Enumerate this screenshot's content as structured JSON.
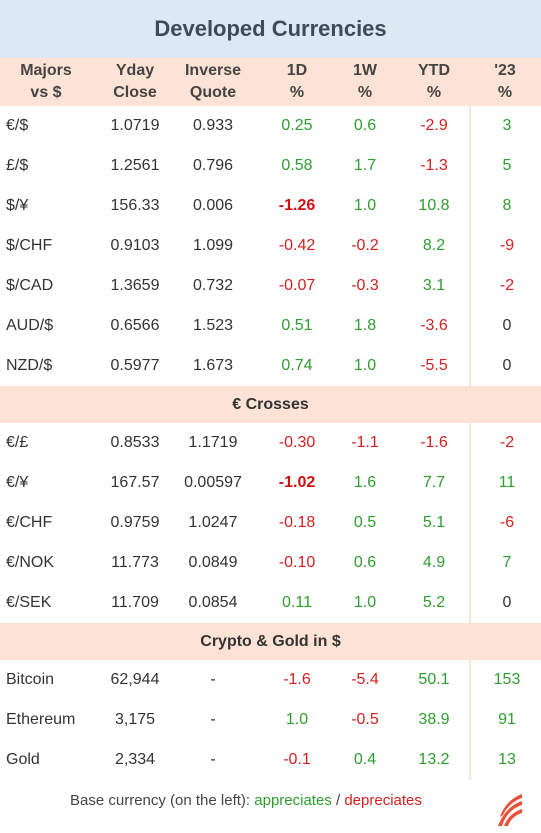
{
  "title": "Developed Currencies",
  "headers": [
    [
      "Majors",
      "vs $"
    ],
    [
      "Yday",
      "Close"
    ],
    [
      "Inverse",
      "Quote"
    ],
    [
      "1D",
      "%"
    ],
    [
      "1W",
      "%"
    ],
    [
      "YTD",
      "%"
    ],
    [
      "'23",
      "%"
    ]
  ],
  "colors": {
    "up": "#2e9e2e",
    "down": "#d62020",
    "neutral": "#333333",
    "section_bg": "#fde3d6",
    "title_bg": "#dbe9f5"
  },
  "majors": [
    {
      "pair": "€/$",
      "close": "1.0719",
      "inverse": "0.933",
      "d1": "0.25",
      "w1": "0.6",
      "ytd": "-2.9",
      "y23": "3",
      "c": [
        "green",
        "green",
        "red",
        "green"
      ]
    },
    {
      "pair": "£/$",
      "close": "1.2561",
      "inverse": "0.796",
      "d1": "0.58",
      "w1": "1.7",
      "ytd": "-1.3",
      "y23": "5",
      "c": [
        "green",
        "green",
        "red",
        "green"
      ]
    },
    {
      "pair": "$/¥",
      "close": "156.33",
      "inverse": "0.006",
      "d1": "-1.26",
      "w1": "1.0",
      "ytd": "10.8",
      "y23": "8",
      "c": [
        "boldred",
        "green",
        "green",
        "green"
      ]
    },
    {
      "pair": "$/CHF",
      "close": "0.9103",
      "inverse": "1.099",
      "d1": "-0.42",
      "w1": "-0.2",
      "ytd": "8.2",
      "y23": "-9",
      "c": [
        "red",
        "red",
        "green",
        "red"
      ]
    },
    {
      "pair": "$/CAD",
      "close": "1.3659",
      "inverse": "0.732",
      "d1": "-0.07",
      "w1": "-0.3",
      "ytd": "3.1",
      "y23": "-2",
      "c": [
        "red",
        "red",
        "green",
        "red"
      ]
    },
    {
      "pair": "AUD/$",
      "close": "0.6566",
      "inverse": "1.523",
      "d1": "0.51",
      "w1": "1.8",
      "ytd": "-3.6",
      "y23": "0",
      "c": [
        "green",
        "green",
        "red",
        "black"
      ]
    },
    {
      "pair": "NZD/$",
      "close": "0.5977",
      "inverse": "1.673",
      "d1": "0.74",
      "w1": "1.0",
      "ytd": "-5.5",
      "y23": "0",
      "c": [
        "green",
        "green",
        "red",
        "black"
      ]
    }
  ],
  "crosses_label": "€ Crosses",
  "crosses": [
    {
      "pair": "€/£",
      "close": "0.8533",
      "inverse": "1.1719",
      "d1": "-0.30",
      "w1": "-1.1",
      "ytd": "-1.6",
      "y23": "-2",
      "c": [
        "red",
        "red",
        "red",
        "red"
      ]
    },
    {
      "pair": "€/¥",
      "close": "167.57",
      "inverse": "0.00597",
      "d1": "-1.02",
      "w1": "1.6",
      "ytd": "7.7",
      "y23": "11",
      "c": [
        "boldred",
        "green",
        "green",
        "green"
      ]
    },
    {
      "pair": "€/CHF",
      "close": "0.9759",
      "inverse": "1.0247",
      "d1": "-0.18",
      "w1": "0.5",
      "ytd": "5.1",
      "y23": "-6",
      "c": [
        "red",
        "green",
        "green",
        "red"
      ]
    },
    {
      "pair": "€/NOK",
      "close": "11.773",
      "inverse": "0.0849",
      "d1": "-0.10",
      "w1": "0.6",
      "ytd": "4.9",
      "y23": "7",
      "c": [
        "red",
        "green",
        "green",
        "green"
      ]
    },
    {
      "pair": "€/SEK",
      "close": "11.709",
      "inverse": "0.0854",
      "d1": "0.11",
      "w1": "1.0",
      "ytd": "5.2",
      "y23": "0",
      "c": [
        "green",
        "green",
        "green",
        "black"
      ]
    }
  ],
  "crypto_label": "Crypto & Gold in $",
  "crypto": [
    {
      "pair": "Bitcoin",
      "close": "62,944",
      "inverse": "-",
      "d1": "-1.6",
      "w1": "-5.4",
      "ytd": "50.1",
      "y23": "153",
      "c": [
        "red",
        "red",
        "green",
        "green"
      ]
    },
    {
      "pair": "Ethereum",
      "close": "3,175",
      "inverse": "-",
      "d1": "1.0",
      "w1": "-0.5",
      "ytd": "38.9",
      "y23": "91",
      "c": [
        "green",
        "red",
        "green",
        "green"
      ]
    },
    {
      "pair": "Gold",
      "close": "2,334",
      "inverse": "-",
      "d1": "-0.1",
      "w1": "0.4",
      "ytd": "13.2",
      "y23": "13",
      "c": [
        "red",
        "green",
        "green",
        "green"
      ]
    }
  ],
  "footer": {
    "prefix": "Base currency (on the left):",
    "up_label": "appreciates",
    "sep": "/",
    "down_label": "depreciates"
  },
  "logo_icon": "flame-logo-icon"
}
